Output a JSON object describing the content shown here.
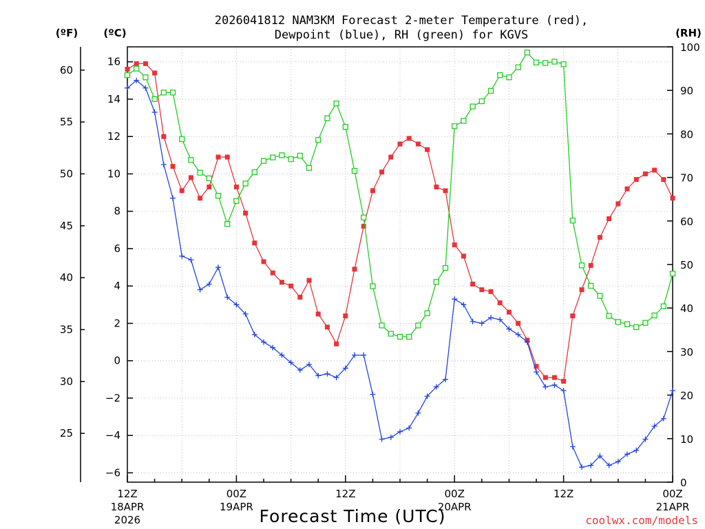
{
  "chart_data": {
    "type": "line",
    "title_line1": "2026041812 NAM3KM Forecast 2-meter Temperature (red),",
    "title_line2": "Dewpoint (blue), RH (green) for KGVS",
    "xlabel": "Forecast Time (UTC)",
    "watermark": "coolwx.com/models",
    "y_left_c_label": "(ºC)",
    "y_left_f_label": "(ºF)",
    "y_right_label": "(RH)",
    "x_range_hours": [
      0,
      60
    ],
    "ylim_c": [
      -6.5,
      16.8
    ],
    "ylim_rh": [
      0,
      100
    ],
    "x_ticks": [
      {
        "hour": 0,
        "line1": "12Z",
        "line2": "18APR",
        "line3": "2026"
      },
      {
        "hour": 12,
        "line1": "00Z",
        "line2": "19APR",
        "line3": ""
      },
      {
        "hour": 24,
        "line1": "12Z",
        "line2": "",
        "line3": ""
      },
      {
        "hour": 36,
        "line1": "00Z",
        "line2": "20APR",
        "line3": ""
      },
      {
        "hour": 48,
        "line1": "12Z",
        "line2": "",
        "line3": ""
      },
      {
        "hour": 60,
        "line1": "00Z",
        "line2": "21APR",
        "line3": ""
      }
    ],
    "y_ticks_c": [
      "16",
      "14",
      "12",
      "10",
      "8",
      "6",
      "4",
      "2",
      "0",
      "−2",
      "−4",
      "−6"
    ],
    "y_ticks_c_values": [
      16,
      14,
      12,
      10,
      8,
      6,
      4,
      2,
      0,
      -2,
      -4,
      -6
    ],
    "y_ticks_f": [
      "60",
      "55",
      "50",
      "45",
      "40",
      "35",
      "30",
      "25"
    ],
    "y_ticks_f_values": [
      60,
      55,
      50,
      45,
      40,
      35,
      30,
      25
    ],
    "y_ticks_rh": [
      "100",
      "90",
      "80",
      "70",
      "60",
      "50",
      "40",
      "30",
      "20",
      "10",
      "0"
    ],
    "y_ticks_rh_values": [
      100,
      90,
      80,
      70,
      60,
      50,
      40,
      30,
      20,
      10,
      0
    ],
    "x": [
      0,
      1,
      2,
      3,
      4,
      5,
      6,
      7,
      8,
      9,
      10,
      11,
      12,
      13,
      14,
      15,
      16,
      17,
      18,
      19,
      20,
      21,
      22,
      23,
      24,
      25,
      26,
      27,
      28,
      29,
      30,
      31,
      32,
      33,
      34,
      35,
      36,
      37,
      38,
      39,
      40,
      41,
      42,
      43,
      44,
      45,
      46,
      47,
      48,
      49,
      50,
      51,
      52,
      53,
      54,
      55,
      56,
      57,
      58,
      59,
      60
    ],
    "series": [
      {
        "name": "Temperature (°C)",
        "color": "#e8333a",
        "marker": "filled-square",
        "values": [
          15.6,
          15.9,
          15.9,
          15.4,
          12.0,
          10.4,
          9.1,
          9.8,
          8.7,
          9.3,
          10.9,
          10.9,
          9.3,
          7.9,
          6.3,
          5.3,
          4.7,
          4.2,
          4.0,
          3.4,
          4.3,
          2.5,
          1.8,
          0.9,
          2.4,
          4.9,
          7.2,
          9.1,
          10.1,
          10.9,
          11.6,
          11.9,
          11.6,
          11.3,
          9.3,
          9.1,
          6.2,
          5.6,
          4.1,
          3.8,
          3.7,
          3.1,
          2.6,
          2.0,
          1.1,
          -0.3,
          -0.9,
          -0.9,
          -1.1,
          2.4,
          3.8,
          5.1,
          6.6,
          7.6,
          8.4,
          9.2,
          9.7,
          10.0,
          10.2,
          9.7,
          8.7
        ]
      },
      {
        "name": "Dewpoint (°C)",
        "color": "#2244e0",
        "marker": "plus",
        "values": [
          14.6,
          15.0,
          14.6,
          13.3,
          10.5,
          8.7,
          5.6,
          5.4,
          3.8,
          4.1,
          5.0,
          3.4,
          3.0,
          2.5,
          1.4,
          1.0,
          0.7,
          0.3,
          -0.1,
          -0.5,
          -0.2,
          -0.8,
          -0.7,
          -0.9,
          -0.4,
          0.3,
          0.3,
          -1.8,
          -4.2,
          -4.1,
          -3.8,
          -3.6,
          -2.8,
          -1.9,
          -1.4,
          -1.0,
          3.3,
          3.0,
          2.1,
          2.0,
          2.3,
          2.2,
          1.7,
          1.4,
          1.0,
          -0.6,
          -1.4,
          -1.3,
          -1.6,
          -4.6,
          -5.7,
          -5.6,
          -5.1,
          -5.6,
          -5.4,
          -5.0,
          -4.8,
          -4.2,
          -3.5,
          -3.1,
          -1.6
        ]
      },
      {
        "name": "RH (%)",
        "color": "#22cc22",
        "marker": "open-square",
        "values": [
          93.5,
          95.0,
          93.0,
          88.0,
          89.5,
          89.5,
          78.8,
          74.0,
          71.1,
          69.8,
          65.8,
          59.3,
          64.6,
          68.6,
          71.2,
          73.8,
          74.6,
          75.1,
          74.2,
          75.0,
          72.2,
          78.6,
          83.6,
          87.0,
          81.6,
          71.5,
          60.8,
          45.0,
          36.0,
          34.1,
          33.4,
          33.4,
          36.0,
          38.8,
          46.0,
          49.2,
          81.8,
          83.0,
          86.3,
          87.5,
          89.9,
          93.5,
          93.0,
          95.3,
          98.7,
          96.4,
          96.3,
          96.6,
          96.0,
          60.1,
          49.8,
          45.1,
          42.8,
          38.2,
          36.8,
          36.3,
          35.6,
          36.6,
          38.3,
          40.4,
          47.9
        ]
      }
    ]
  }
}
